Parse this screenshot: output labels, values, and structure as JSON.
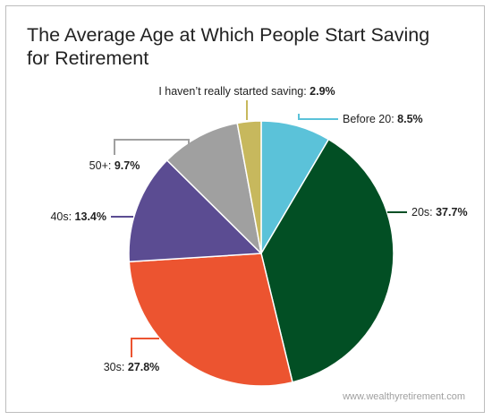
{
  "title": "The Average Age at Which People Start Saving for Retirement",
  "source": "www.wealthyretirement.com",
  "chart_data": {
    "type": "pie",
    "start": "12 o'clock",
    "direction": "clockwise",
    "legend": "none (callout labels with leader lines)",
    "slices": [
      {
        "label": "Before 20:",
        "value": 8.5,
        "value_text": "8.5%",
        "color": "#5bc2d9"
      },
      {
        "label": "20s:",
        "value": 37.7,
        "value_text": "37.7%",
        "color": "#024f24"
      },
      {
        "label": "30s:",
        "value": 27.8,
        "value_text": "27.8%",
        "color": "#ec5430"
      },
      {
        "label": "40s:",
        "value": 13.4,
        "value_text": "13.4%",
        "color": "#5b4c92"
      },
      {
        "label": "50+:",
        "value": 9.7,
        "value_text": "9.7%",
        "color": "#a0a0a0"
      },
      {
        "label": "I haven’t really started saving:",
        "value": 2.9,
        "value_text": "2.9%",
        "color": "#c7b85d"
      }
    ]
  }
}
